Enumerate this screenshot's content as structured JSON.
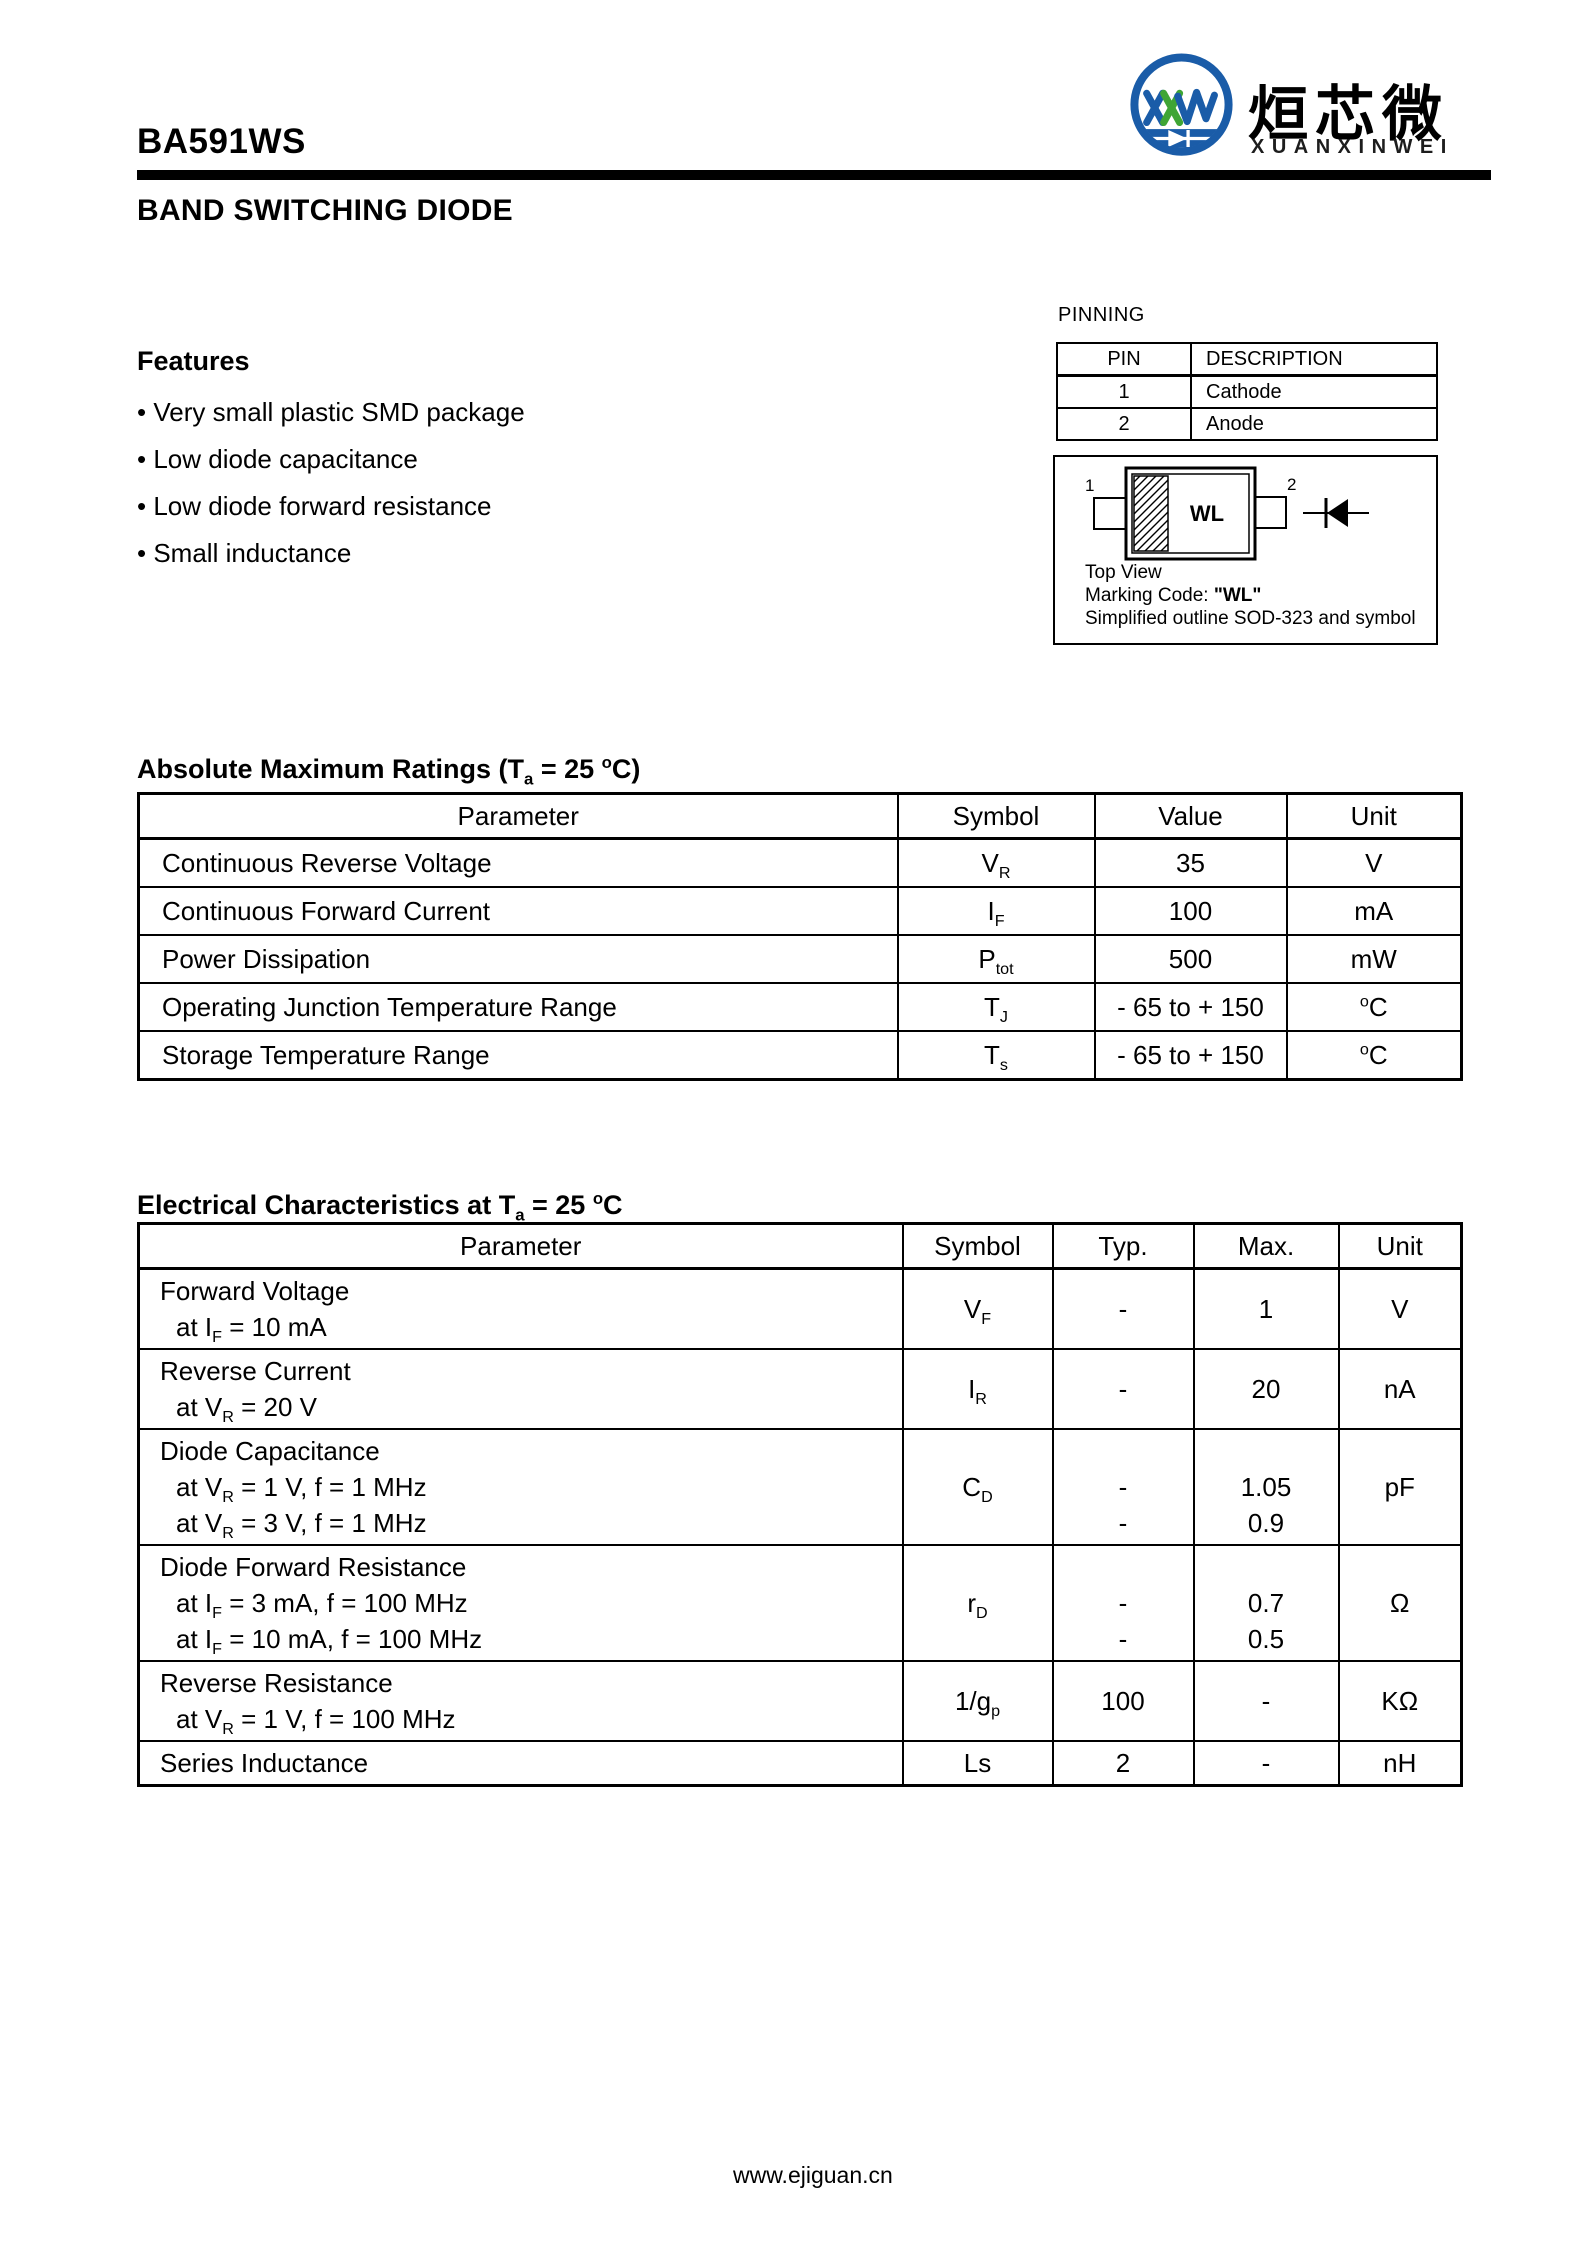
{
  "page": {
    "part_number": "BA591WS",
    "product_title": "BAND SWITCHING DIODE",
    "footer_url": "www.ejiguan.cn"
  },
  "logo": {
    "monogram": "XXW",
    "chinese_name": "烜芯微",
    "romanized_name": "XUANXINWEI",
    "brand_blue": "#1a5ca8",
    "brand_green": "#3fa535"
  },
  "features": {
    "title": "Features",
    "items": [
      "Very small plastic SMD package",
      "Low diode capacitance",
      "Low diode forward resistance",
      "Small inductance"
    ]
  },
  "pinning": {
    "title": "PINNING",
    "headers": [
      "PIN",
      "DESCRIPTION"
    ],
    "rows": [
      [
        "1",
        "Cathode"
      ],
      [
        "2",
        "Anode"
      ]
    ]
  },
  "package_outline": {
    "pin1_label": "1",
    "pin2_label": "2",
    "marking": "WL",
    "caption_line1": "Top View",
    "caption_line2": "Marking Code: *\"WL\"*",
    "caption_line3": "Simplified outline SOD-323 and symbol"
  },
  "abs_max": {
    "title": "Absolute Maximum Ratings (T~a~ = 25 ^o^C)",
    "headers": [
      "Parameter",
      "Symbol",
      "Value",
      "Unit"
    ],
    "rows": [
      {
        "param": "Continuous Reverse Voltage",
        "symbol": "V~R~",
        "value": "35",
        "unit": "V"
      },
      {
        "param": "Continuous Forward Current",
        "symbol": "I~F~",
        "value": "100",
        "unit": "mA"
      },
      {
        "param": "Power Dissipation",
        "symbol": "P~tot~",
        "value": "500",
        "unit": "mW"
      },
      {
        "param": "Operating Junction Temperature Range",
        "symbol": "T~J~",
        "value": "- 65 to + 150",
        "unit": "^o^C"
      },
      {
        "param": "Storage Temperature Range",
        "symbol": "T~s~",
        "value": "- 65 to + 150",
        "unit": "^o^C"
      }
    ]
  },
  "elec": {
    "title": "Electrical Characteristics at T~a~ = 25 ^o^C",
    "headers": [
      "Parameter",
      "Symbol",
      "Typ.",
      "Max.",
      "Unit"
    ],
    "rows": [
      {
        "param": [
          "Forward Voltage",
          "at I~F~ = 10 mA"
        ],
        "symbol": "V~F~",
        "typ": "-",
        "max": "1",
        "unit": "V"
      },
      {
        "param": [
          "Reverse Current",
          "at V~R~ = 20 V"
        ],
        "symbol": "I~R~",
        "typ": "-",
        "max": "20",
        "unit": "nA"
      },
      {
        "param": [
          "Diode Capacitance",
          "at V~R~ = 1 V, f = 1 MHz",
          "at V~R~ = 3 V, f = 1 MHz"
        ],
        "symbol": "C~D~",
        "typ": "\n-\n-",
        "max": "\n1.05\n0.9",
        "unit": "pF"
      },
      {
        "param": [
          "Diode Forward Resistance",
          "at I~F~ = 3 mA, f = 100 MHz",
          "at I~F~ = 10 mA, f = 100 MHz"
        ],
        "symbol": "r~D~",
        "typ": "\n-\n-",
        "max": "\n0.7\n0.5",
        "unit": "Ω"
      },
      {
        "param": [
          "Reverse Resistance",
          "at V~R~ = 1 V, f = 100 MHz"
        ],
        "symbol": "1/g~p~",
        "typ": "100",
        "max": "-",
        "unit": "KΩ"
      },
      {
        "param": [
          "Series Inductance"
        ],
        "symbol": "Ls",
        "typ": "2",
        "max": "-",
        "unit": "nH"
      }
    ]
  }
}
